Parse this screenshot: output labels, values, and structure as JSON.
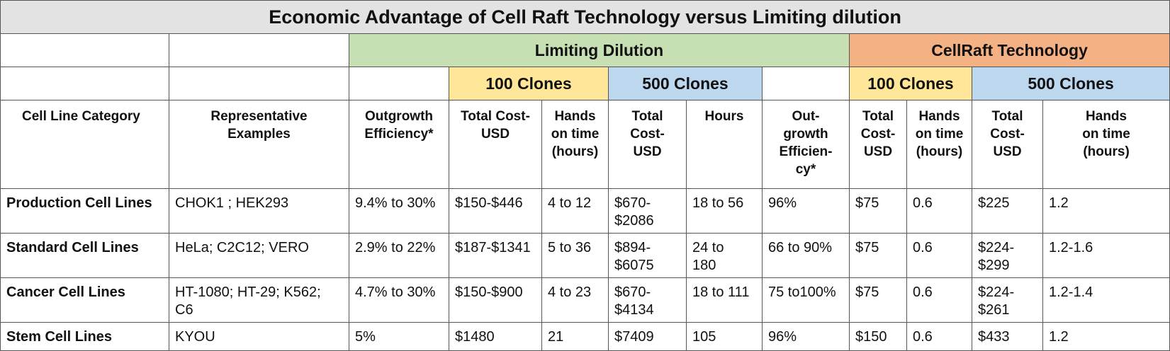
{
  "title": "Economic Advantage of Cell Raft Technology versus Limiting dilution",
  "groups": {
    "ld": "Limiting Dilution",
    "cr": "CellRaft Technology"
  },
  "subgroups": {
    "c100": "100 Clones",
    "c500": "500 Clones"
  },
  "headers": {
    "cat": "Cell Line Category",
    "ex": [
      "Representative",
      "Examples"
    ],
    "ld_eff": [
      "Outgrowth",
      "Efficiency*"
    ],
    "ld_100_cost": [
      "Total Cost-",
      "USD"
    ],
    "ld_100_hands": [
      "Hands",
      "on time",
      "(hours)"
    ],
    "ld_500_cost": [
      "Total",
      "Cost-",
      "USD"
    ],
    "ld_500_hours": "Hours",
    "cr_eff": [
      "Out-",
      "growth",
      "Efficien-",
      "cy*"
    ],
    "cr_100_cost": [
      "Total",
      "Cost-",
      "USD"
    ],
    "cr_100_hands": [
      "Hands",
      "on time",
      "(hours)"
    ],
    "cr_500_cost": [
      "Total",
      "Cost-",
      "USD"
    ],
    "cr_500_hands": [
      "Hands",
      "on time",
      "(hours)"
    ]
  },
  "rows": [
    {
      "cat": "Production Cell Lines",
      "ex": [
        "CHOK1 ; HEK293"
      ],
      "ld_eff": [
        "9.4% to 30%"
      ],
      "ld_100_cost": [
        "$150-$446"
      ],
      "ld_100_hands": [
        "4 to 12"
      ],
      "ld_500_cost": [
        "$670-",
        "$2086"
      ],
      "ld_500_hours": [
        "18 to 56"
      ],
      "cr_eff": [
        "96%"
      ],
      "cr_100_cost": [
        "$75"
      ],
      "cr_100_hands": [
        "0.6"
      ],
      "cr_500_cost": [
        "$225"
      ],
      "cr_500_hands": [
        "1.2"
      ]
    },
    {
      "cat": "Standard Cell Lines",
      "ex": [
        "HeLa; C2C12; VERO"
      ],
      "ld_eff": [
        "2.9% to 22%"
      ],
      "ld_100_cost": [
        "$187-$1341"
      ],
      "ld_100_hands": [
        "5 to 36"
      ],
      "ld_500_cost": [
        "$894-",
        "$6075"
      ],
      "ld_500_hours": [
        "24 to",
        "180"
      ],
      "cr_eff": [
        "66 to 90%"
      ],
      "cr_100_cost": [
        "$75"
      ],
      "cr_100_hands": [
        "0.6"
      ],
      "cr_500_cost": [
        "$224-",
        "$299"
      ],
      "cr_500_hands": [
        "1.2-1.6"
      ]
    },
    {
      "cat": "Cancer Cell Lines",
      "ex": [
        "HT-1080; HT-29; K562;",
        "C6"
      ],
      "ld_eff": [
        "4.7% to 30%"
      ],
      "ld_100_cost": [
        "$150-$900"
      ],
      "ld_100_hands": [
        "4 to 23"
      ],
      "ld_500_cost": [
        "$670-",
        "$4134"
      ],
      "ld_500_hours": [
        "18 to 111"
      ],
      "cr_eff": [
        "75 to100%"
      ],
      "cr_100_cost": [
        "$75"
      ],
      "cr_100_hands": [
        "0.6"
      ],
      "cr_500_cost": [
        "$224-",
        "$261"
      ],
      "cr_500_hands": [
        "1.2-1.4"
      ]
    },
    {
      "cat": "Stem Cell Lines",
      "ex": [
        "KYOU"
      ],
      "ld_eff": [
        "5%"
      ],
      "ld_100_cost": [
        "$1480"
      ],
      "ld_100_hands": [
        "21"
      ],
      "ld_500_cost": [
        "$7409"
      ],
      "ld_500_hours": [
        "105"
      ],
      "cr_eff": [
        "96%"
      ],
      "cr_100_cost": [
        "$150"
      ],
      "cr_100_hands": [
        "0.6"
      ],
      "cr_500_cost": [
        "$433"
      ],
      "cr_500_hands": [
        "1.2"
      ]
    }
  ]
}
